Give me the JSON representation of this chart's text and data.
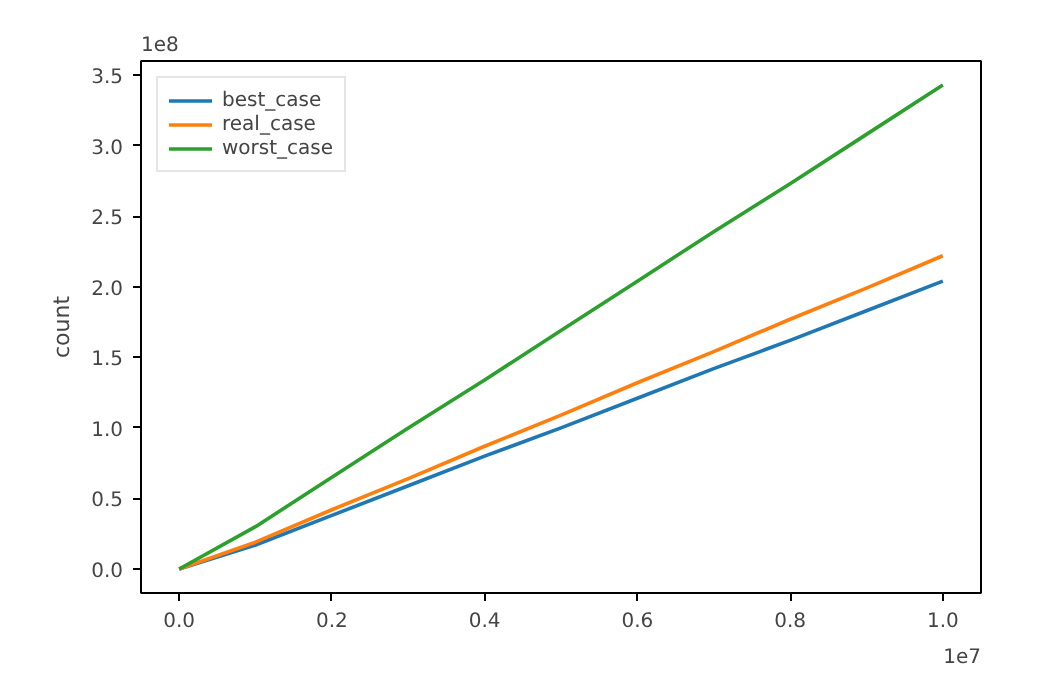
{
  "chart_data": {
    "type": "line",
    "ylabel": "count",
    "annotations": [
      "1e8",
      "1e7"
    ],
    "x": [
      0,
      0.1,
      0.2,
      0.3,
      0.4,
      0.5,
      0.6,
      0.7,
      0.8,
      0.9,
      1.0
    ],
    "series": [
      {
        "name": "best_case",
        "color": "#1f77b4",
        "values": [
          0,
          0.17,
          0.38,
          0.59,
          0.8,
          1.0,
          1.21,
          1.42,
          1.62,
          1.83,
          2.04
        ]
      },
      {
        "name": "real_case",
        "color": "#ff7f0e",
        "values": [
          0,
          0.19,
          0.42,
          0.64,
          0.87,
          1.09,
          1.32,
          1.54,
          1.77,
          1.99,
          2.22
        ]
      },
      {
        "name": "worst_case",
        "color": "#2ca02c",
        "values": [
          0,
          0.3,
          0.65,
          1.0,
          1.34,
          1.69,
          2.04,
          2.39,
          2.73,
          3.08,
          3.43
        ]
      }
    ],
    "xlim": [
      -0.05,
      1.05
    ],
    "ylim": [
      -0.17,
      3.6
    ],
    "xticks": [
      {
        "value": 0,
        "label": "0.0"
      },
      {
        "value": 0.2,
        "label": "0.2"
      },
      {
        "value": 0.4,
        "label": "0.4"
      },
      {
        "value": 0.6,
        "label": "0.6"
      },
      {
        "value": 0.8,
        "label": "0.8"
      },
      {
        "value": 1.0,
        "label": "1.0"
      }
    ],
    "yticks": [
      {
        "value": 0,
        "label": "0.0"
      },
      {
        "value": 0.5,
        "label": "0.5"
      },
      {
        "value": 1.0,
        "label": "1.0"
      },
      {
        "value": 1.5,
        "label": "1.5"
      },
      {
        "value": 2.0,
        "label": "2.0"
      },
      {
        "value": 2.5,
        "label": "2.5"
      },
      {
        "value": 3.0,
        "label": "3.0"
      },
      {
        "value": 3.5,
        "label": "3.5"
      }
    ],
    "legend": "top left",
    "grid": false,
    "line_style": "solid"
  }
}
